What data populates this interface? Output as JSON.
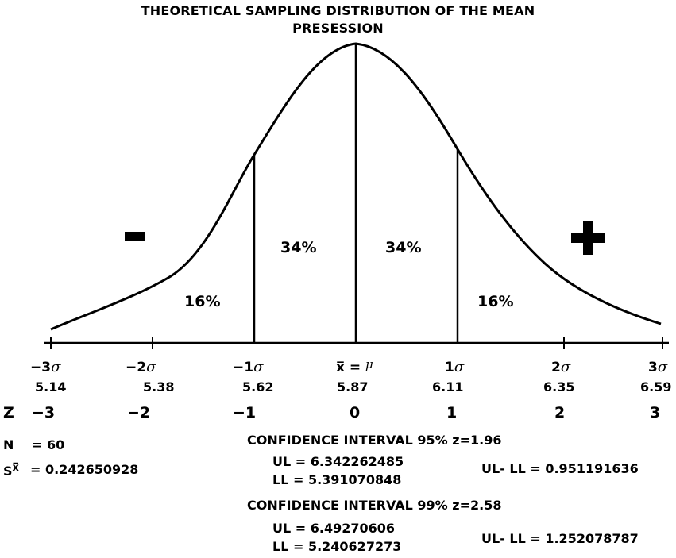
{
  "title_line1": "THEORETICAL SAMPLING DISTRIBUTION OF THE MEAN",
  "title_line2": "PRESESSION",
  "signs": {
    "minus": "-",
    "plus": "+"
  },
  "percents": {
    "left_tail": "16%",
    "left_mid": "34%",
    "right_mid": "34%",
    "right_tail": "16%"
  },
  "sigma_labels": [
    {
      "prefix": "−3",
      "sym": "σ",
      "value": "5.14"
    },
    {
      "prefix": "−2",
      "sym": "σ",
      "value": "5.38"
    },
    {
      "prefix": "−1",
      "sym": "σ",
      "value": "5.62"
    },
    {
      "prefix": "x̅ = ",
      "sym": "μ",
      "value": "5.87"
    },
    {
      "prefix": "1",
      "sym": "σ",
      "value": "6.11"
    },
    {
      "prefix": "2",
      "sym": "σ",
      "value": "6.35"
    },
    {
      "prefix": "3",
      "sym": "σ",
      "value": "6.59"
    }
  ],
  "z_label": "Z",
  "z_values": [
    "−3",
    "−2",
    "−1",
    "0",
    "1",
    "2",
    "3"
  ],
  "n_label": "N",
  "n_value": "= 60",
  "sx_label": "S",
  "sx_bar": "x̅",
  "sx_value": "= 0.242650928",
  "ci95": {
    "heading": "CONFIDENCE INTERVAL 95% z=1.96",
    "ul": "UL = 6.342262485",
    "ll": "LL = 5.391070848",
    "diff": "UL- LL =  0.951191636"
  },
  "ci99": {
    "heading": "CONFIDENCE INTERVAL 99% z=2.58",
    "ul": "UL = 6.49270606",
    "ll": "LL = 5.240627273",
    "diff": "UL- LL =  1.252078787"
  }
}
